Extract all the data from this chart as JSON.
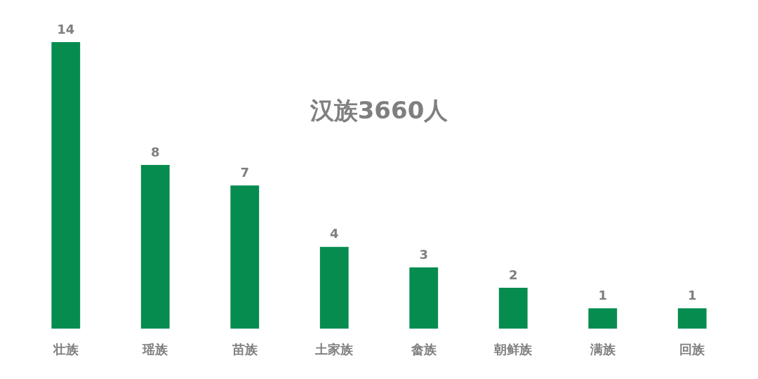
{
  "chart_data": {
    "type": "bar",
    "categories": [
      "壮族",
      "瑶族",
      "苗族",
      "土家族",
      "畲族",
      "朝鲜族",
      "满族",
      "回族"
    ],
    "values": [
      14,
      8,
      7,
      4,
      3,
      2,
      1,
      1
    ],
    "color": "#078c50",
    "data_labels": true,
    "grid": false,
    "legend": false,
    "annotations": [
      "汉族3660人"
    ]
  }
}
